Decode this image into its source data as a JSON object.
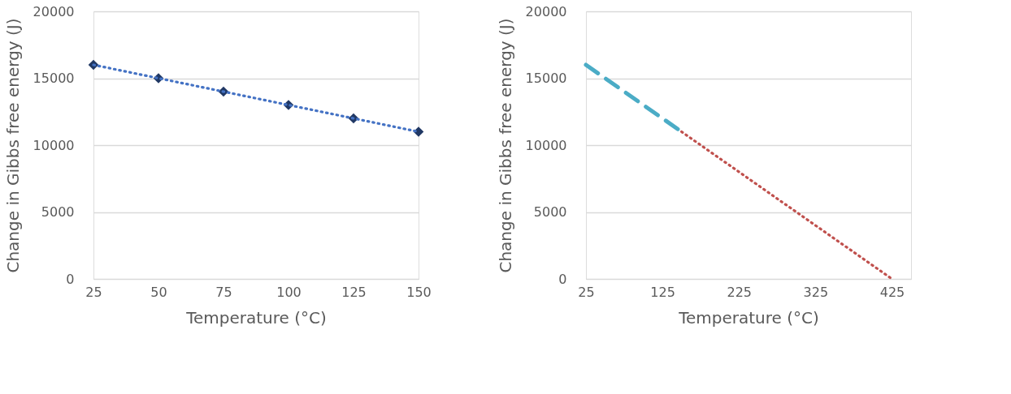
{
  "chart_data": [
    {
      "type": "scatter",
      "xlabel": "Temperature (°C)",
      "ylabel": "Change in Gibbs free energy (J)",
      "xlim": [
        25,
        150
      ],
      "xticks": [
        25,
        50,
        75,
        100,
        125,
        150
      ],
      "ylim": [
        0,
        20000
      ],
      "yticks": [
        0,
        5000,
        10000,
        15000,
        20000
      ],
      "grid": "y",
      "series": [
        {
          "color": "#203864",
          "marker": "diamond",
          "x": [
            25,
            50,
            75,
            100,
            125,
            150
          ],
          "values": [
            16000,
            15000,
            14000,
            13000,
            12000,
            11000
          ]
        },
        {
          "type": "line",
          "color": "#4472c4",
          "line_style": "dotted",
          "x": [
            25,
            150
          ],
          "values": [
            16000,
            11000
          ]
        }
      ]
    },
    {
      "type": "line",
      "xlabel": "Temperature (°C)",
      "ylabel": "Change in Gibbs free energy (J)",
      "xlim": [
        25,
        450
      ],
      "xticks": [
        25,
        125,
        225,
        325,
        425
      ],
      "ylim": [
        0,
        20000
      ],
      "yticks": [
        0,
        5000,
        10000,
        15000,
        20000
      ],
      "grid": "y",
      "series": [
        {
          "color": "#4bacc6",
          "line_style": "dashed",
          "x": [
            25,
            150
          ],
          "values": [
            16000,
            11000
          ]
        },
        {
          "color": "#c0504d",
          "line_style": "dotted",
          "x": [
            150,
            425
          ],
          "values": [
            11000,
            0
          ]
        }
      ]
    }
  ]
}
